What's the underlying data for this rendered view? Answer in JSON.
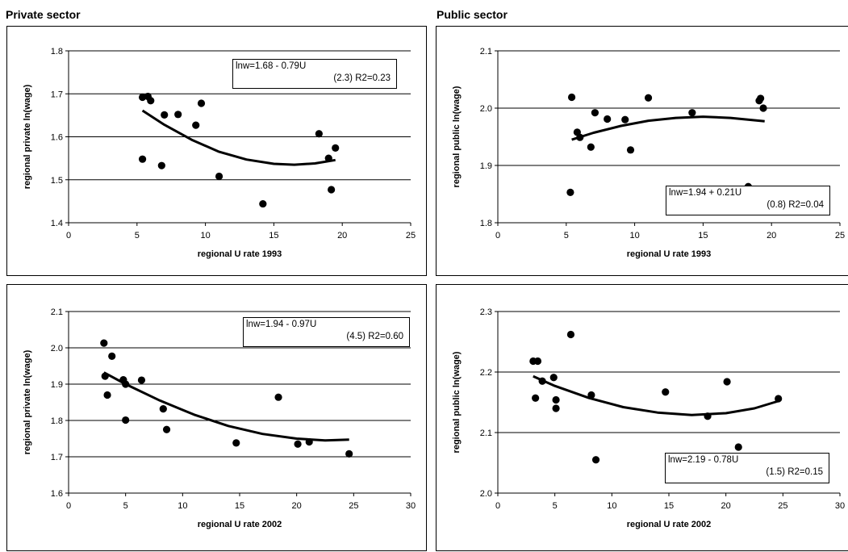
{
  "sections": {
    "private_title": "Private sector",
    "public_title": "Public sector"
  },
  "chart_data": [
    {
      "type": "scatter",
      "id": "private-1993",
      "xlabel": "regional U rate 1993",
      "ylabel": "regional private ln(wage)",
      "xlim": [
        0,
        25
      ],
      "ylim": [
        1.4,
        1.8
      ],
      "xticks": [
        "0",
        "5",
        "10",
        "15",
        "20",
        "25"
      ],
      "yticks": [
        "1.4",
        "1.5",
        "1.6",
        "1.7",
        "1.8"
      ],
      "grid": "horizontal",
      "points": [
        [
          5.4,
          1.692
        ],
        [
          5.8,
          1.694
        ],
        [
          6.0,
          1.684
        ],
        [
          5.4,
          1.548
        ],
        [
          6.8,
          1.533
        ],
        [
          7.0,
          1.651
        ],
        [
          8.0,
          1.652
        ],
        [
          9.3,
          1.627
        ],
        [
          9.7,
          1.678
        ],
        [
          11.0,
          1.508
        ],
        [
          14.2,
          1.444
        ],
        [
          18.3,
          1.607
        ],
        [
          19.0,
          1.55
        ],
        [
          19.2,
          1.477
        ],
        [
          19.5,
          1.574
        ]
      ],
      "trend": [
        [
          5.4,
          1.661
        ],
        [
          7.0,
          1.628
        ],
        [
          9.0,
          1.593
        ],
        [
          11.0,
          1.565
        ],
        [
          13.0,
          1.547
        ],
        [
          15.0,
          1.537
        ],
        [
          16.5,
          1.535
        ],
        [
          18.0,
          1.538
        ],
        [
          19.5,
          1.546
        ]
      ],
      "equation": {
        "line1": "lnw=1.68 - 0.79U",
        "line2": "(2.3)   R2=0.23"
      }
    },
    {
      "type": "scatter",
      "id": "public-1993",
      "xlabel": "regional U rate 1993",
      "ylabel": "regional public ln(wage)",
      "xlim": [
        0,
        25
      ],
      "ylim": [
        1.8,
        2.1
      ],
      "xticks": [
        "0",
        "5",
        "10",
        "15",
        "20",
        "25"
      ],
      "yticks": [
        "1.8",
        "1.9",
        "2.0",
        "2.1"
      ],
      "grid": "horizontal",
      "points": [
        [
          5.4,
          2.019
        ],
        [
          5.3,
          1.853
        ],
        [
          5.8,
          1.958
        ],
        [
          6.0,
          1.949
        ],
        [
          6.8,
          1.932
        ],
        [
          7.1,
          1.992
        ],
        [
          8.0,
          1.981
        ],
        [
          9.3,
          1.98
        ],
        [
          9.7,
          1.927
        ],
        [
          11.0,
          2.018
        ],
        [
          14.2,
          1.992
        ],
        [
          18.3,
          1.863
        ],
        [
          19.1,
          2.013
        ],
        [
          19.2,
          2.017
        ],
        [
          19.4,
          2.0
        ]
      ],
      "trend": [
        [
          5.4,
          1.945
        ],
        [
          7.0,
          1.957
        ],
        [
          9.0,
          1.969
        ],
        [
          11.0,
          1.978
        ],
        [
          13.0,
          1.983
        ],
        [
          15.0,
          1.985
        ],
        [
          17.0,
          1.983
        ],
        [
          19.5,
          1.977
        ]
      ],
      "equation": {
        "line1": "lnw=1.94 + 0.21U",
        "line2": "(0.8)   R2=0.04"
      }
    },
    {
      "type": "scatter",
      "id": "private-2002",
      "xlabel": "regional U rate 2002",
      "ylabel": "regional private ln(wage)",
      "xlim": [
        0,
        30
      ],
      "ylim": [
        1.6,
        2.1
      ],
      "xticks": [
        "0",
        "5",
        "10",
        "15",
        "20",
        "25",
        "30"
      ],
      "yticks": [
        "1.6",
        "1.7",
        "1.8",
        "1.9",
        "2.0",
        "2.1"
      ],
      "grid": "horizontal",
      "points": [
        [
          3.1,
          2.013
        ],
        [
          3.2,
          1.922
        ],
        [
          3.4,
          1.87
        ],
        [
          3.8,
          1.977
        ],
        [
          4.8,
          1.912
        ],
        [
          5.0,
          1.9
        ],
        [
          5.0,
          1.801
        ],
        [
          6.4,
          1.911
        ],
        [
          8.3,
          1.832
        ],
        [
          8.6,
          1.775
        ],
        [
          14.7,
          1.738
        ],
        [
          18.4,
          1.864
        ],
        [
          20.1,
          1.735
        ],
        [
          21.1,
          1.741
        ],
        [
          24.6,
          1.708
        ]
      ],
      "trend": [
        [
          3.1,
          1.932
        ],
        [
          5.0,
          1.9
        ],
        [
          8.0,
          1.855
        ],
        [
          11.0,
          1.816
        ],
        [
          14.0,
          1.785
        ],
        [
          17.0,
          1.763
        ],
        [
          20.0,
          1.75
        ],
        [
          22.5,
          1.745
        ],
        [
          24.6,
          1.747
        ]
      ],
      "equation": {
        "line1": "lnw=1.94 - 0.97U",
        "line2": "(4.5)   R2=0.60"
      }
    },
    {
      "type": "scatter",
      "id": "public-2002",
      "xlabel": "regional U rate 2002",
      "ylabel": "regional public ln(wage)",
      "xlim": [
        0,
        30
      ],
      "ylim": [
        2.0,
        2.3
      ],
      "xticks": [
        "0",
        "5",
        "10",
        "15",
        "20",
        "25",
        "30"
      ],
      "yticks": [
        "2.0",
        "2.1",
        "2.2",
        "2.3"
      ],
      "grid": "horizontal",
      "points": [
        [
          3.1,
          2.218
        ],
        [
          3.5,
          2.218
        ],
        [
          3.3,
          2.157
        ],
        [
          3.9,
          2.185
        ],
        [
          4.9,
          2.191
        ],
        [
          5.1,
          2.154
        ],
        [
          5.1,
          2.14
        ],
        [
          6.4,
          2.262
        ],
        [
          8.2,
          2.162
        ],
        [
          8.6,
          2.055
        ],
        [
          14.7,
          2.167
        ],
        [
          18.4,
          2.127
        ],
        [
          20.1,
          2.184
        ],
        [
          21.1,
          2.076
        ],
        [
          24.6,
          2.156
        ]
      ],
      "trend": [
        [
          3.1,
          2.193
        ],
        [
          5.0,
          2.177
        ],
        [
          8.0,
          2.157
        ],
        [
          11.0,
          2.142
        ],
        [
          14.0,
          2.133
        ],
        [
          17.0,
          2.129
        ],
        [
          20.0,
          2.132
        ],
        [
          22.5,
          2.14
        ],
        [
          24.6,
          2.152
        ]
      ],
      "equation": {
        "line1": "lnw=2.19 - 0.78U",
        "line2": "(1.5)   R2=0.15"
      }
    }
  ]
}
